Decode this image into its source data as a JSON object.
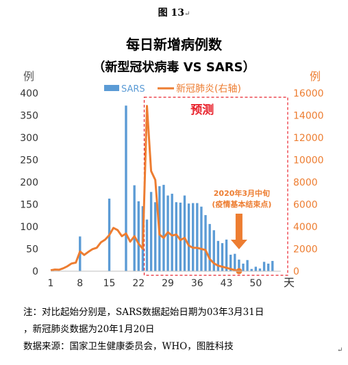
{
  "figure_label": "图 13",
  "notes": {
    "line1": "注：对比起始分别是，SARS数据起始日期为03年3月31日",
    "line2": "，新冠肺炎数据为20年1月20日",
    "line3": "数据来源：国家卫生健康委员会，WHO，图胜科技"
  },
  "colors": {
    "sars": "#5b9bd5",
    "covid": "#ed7d31",
    "forecast_box": "#e8202a",
    "forecast_text": "#e8202a"
  },
  "chart_data": {
    "type": "bar",
    "title": "每日新增病例数",
    "subtitle": "（新型冠状病毒 VS SARS）",
    "xlabel": "天",
    "ylabel_left": "例",
    "ylabel_right": "例",
    "x_ticks": [
      "1",
      "8",
      "15",
      "22",
      "29",
      "36",
      "43",
      "50"
    ],
    "xlim": [
      1,
      56
    ],
    "ylim_left": [
      0,
      400
    ],
    "ylim_right": [
      0,
      16000
    ],
    "y_ticks_left": [
      "0",
      "50",
      "100",
      "150",
      "200",
      "250",
      "300",
      "350",
      "400"
    ],
    "y_ticks_right": [
      "0",
      "2000",
      "4000",
      "6000",
      "8000",
      "10000",
      "12000",
      "14000",
      "16000"
    ],
    "legend": {
      "position": "top",
      "entries": [
        "SARS",
        "新冠肺炎(右轴)"
      ]
    },
    "series": [
      {
        "name": "SARS",
        "axis": "left",
        "kind": "bar",
        "x": [
          8,
          15,
          19,
          21,
          22,
          23,
          24,
          25,
          26,
          27,
          28,
          29,
          30,
          31,
          32,
          33,
          34,
          35,
          36,
          37,
          38,
          39,
          40,
          41,
          42,
          43,
          44,
          45,
          46,
          47,
          48,
          49,
          50,
          51,
          52,
          53,
          54,
          55
        ],
        "values": [
          78,
          163,
          372,
          193,
          157,
          146,
          116,
          178,
          155,
          191,
          194,
          170,
          174,
          155,
          154,
          170,
          152,
          153,
          153,
          145,
          126,
          106,
          92,
          68,
          63,
          71,
          37,
          39,
          26,
          17,
          25,
          5,
          10,
          6,
          21,
          17,
          23,
          0
        ]
      },
      {
        "name": "新冠肺炎(右轴)",
        "axis": "right",
        "kind": "line",
        "x": [
          1,
          2,
          3,
          4,
          5,
          6,
          7,
          8,
          9,
          10,
          11,
          12,
          13,
          14,
          15,
          16,
          17,
          18,
          19,
          20,
          21,
          22,
          23,
          24,
          25,
          26,
          27,
          28,
          29,
          30,
          31,
          32,
          33,
          34,
          35,
          36,
          37,
          38,
          39,
          40,
          41,
          42,
          43,
          44,
          45,
          46
        ],
        "values": [
          77,
          149,
          131,
          259,
          444,
          688,
          769,
          1771,
          1459,
          1737,
          1981,
          2102,
          2590,
          2829,
          3235,
          3887,
          3694,
          3143,
          3385,
          2652,
          3143,
          2473,
          2015,
          14840,
          9000,
          8200,
          3300,
          3000,
          3500,
          3200,
          3300,
          2800,
          3000,
          2300,
          2100,
          2100,
          2000,
          1900,
          1100,
          700,
          500,
          400,
          300,
          200,
          100,
          0
        ]
      }
    ],
    "annotations": {
      "forecast_label": "预测",
      "forecast_start_x": 24,
      "forecast_end_x": 56,
      "arrow_label_line1": "2020年3月中旬",
      "arrow_label_line2": "(疫情基本结束点)",
      "arrow_x": 46
    }
  }
}
